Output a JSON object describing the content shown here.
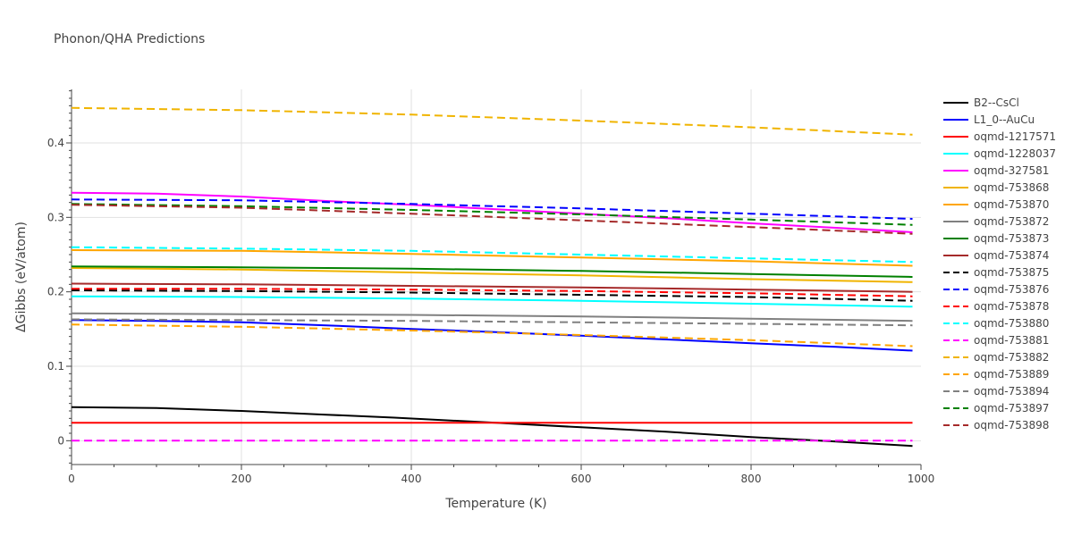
{
  "chart_data": {
    "type": "line",
    "title": "Phonon/QHA Predictions",
    "xlabel": "Temperature (K)",
    "ylabel": "ΔGibbs (eV/atom)",
    "xlim": [
      0,
      1000
    ],
    "ylim": [
      -0.032,
      0.472
    ],
    "xticks": [
      0,
      200,
      400,
      600,
      800,
      1000
    ],
    "yticks": [
      0,
      0.1,
      0.2,
      0.3,
      0.4
    ],
    "ytick_labels": [
      "0",
      "0.1",
      "0.2",
      "0.3",
      "0.4"
    ],
    "grid": true,
    "legend_position": "right",
    "series": [
      {
        "name": "B2--CsCl",
        "color": "#000000",
        "dash": "solid",
        "x": [
          0,
          100,
          200,
          300,
          380,
          500,
          600,
          700,
          800,
          900,
          990
        ],
        "y": [
          0.045,
          0.044,
          0.04,
          0.035,
          0.031,
          0.024,
          0.018,
          0.012,
          0.005,
          -0.001,
          -0.007
        ]
      },
      {
        "name": "L1_0--AuCu",
        "color": "#0000ff",
        "dash": "solid",
        "x": [
          0,
          100,
          200,
          300,
          400,
          500,
          600,
          700,
          800,
          900,
          990
        ],
        "y": [
          0.162,
          0.161,
          0.159,
          0.155,
          0.15,
          0.146,
          0.141,
          0.136,
          0.131,
          0.126,
          0.121
        ]
      },
      {
        "name": "oqmd-1217571",
        "color": "#ff0000",
        "dash": "solid",
        "x": [
          0,
          500,
          990
        ],
        "y": [
          0.024,
          0.024,
          0.024
        ]
      },
      {
        "name": "oqmd-1228037",
        "color": "#00ffff",
        "dash": "solid",
        "x": [
          0,
          200,
          400,
          600,
          800,
          990
        ],
        "y": [
          0.194,
          0.193,
          0.191,
          0.188,
          0.184,
          0.18
        ]
      },
      {
        "name": "oqmd-327581",
        "color": "#ff00ff",
        "dash": "solid",
        "x": [
          0,
          100,
          200,
          300,
          400,
          500,
          600,
          700,
          800,
          900,
          990
        ],
        "y": [
          0.333,
          0.332,
          0.328,
          0.322,
          0.317,
          0.311,
          0.305,
          0.299,
          0.292,
          0.286,
          0.28
        ]
      },
      {
        "name": "oqmd-753868",
        "color": "#f0b400",
        "dash": "solid",
        "x": [
          0,
          200,
          400,
          600,
          800,
          990
        ],
        "y": [
          0.232,
          0.23,
          0.226,
          0.222,
          0.217,
          0.213
        ]
      },
      {
        "name": "oqmd-753870",
        "color": "#ffa500",
        "dash": "solid",
        "x": [
          0,
          200,
          400,
          600,
          800,
          990
        ],
        "y": [
          0.256,
          0.255,
          0.251,
          0.246,
          0.241,
          0.235
        ]
      },
      {
        "name": "oqmd-753872",
        "color": "#808080",
        "dash": "solid",
        "x": [
          0,
          200,
          400,
          600,
          800,
          990
        ],
        "y": [
          0.171,
          0.17,
          0.169,
          0.167,
          0.164,
          0.161
        ]
      },
      {
        "name": "oqmd-753873",
        "color": "#008000",
        "dash": "solid",
        "x": [
          0,
          200,
          400,
          600,
          800,
          990
        ],
        "y": [
          0.234,
          0.233,
          0.231,
          0.228,
          0.224,
          0.22
        ]
      },
      {
        "name": "oqmd-753874",
        "color": "#a52a2a",
        "dash": "solid",
        "x": [
          0,
          200,
          400,
          600,
          800,
          990
        ],
        "y": [
          0.211,
          0.21,
          0.208,
          0.206,
          0.203,
          0.2
        ]
      },
      {
        "name": "oqmd-753875",
        "color": "#000000",
        "dash": "dash",
        "x": [
          0,
          200,
          400,
          600,
          800,
          990
        ],
        "y": [
          0.202,
          0.201,
          0.199,
          0.196,
          0.193,
          0.188
        ]
      },
      {
        "name": "oqmd-753876",
        "color": "#0000ff",
        "dash": "dash",
        "x": [
          0,
          200,
          400,
          600,
          800,
          990
        ],
        "y": [
          0.324,
          0.323,
          0.318,
          0.312,
          0.305,
          0.298
        ]
      },
      {
        "name": "oqmd-753878",
        "color": "#ff0000",
        "dash": "dash",
        "x": [
          0,
          200,
          400,
          600,
          800,
          990
        ],
        "y": [
          0.204,
          0.204,
          0.203,
          0.201,
          0.198,
          0.194
        ]
      },
      {
        "name": "oqmd-753880",
        "color": "#00ffff",
        "dash": "dash",
        "x": [
          0,
          200,
          400,
          600,
          800,
          990
        ],
        "y": [
          0.26,
          0.258,
          0.255,
          0.25,
          0.245,
          0.24
        ]
      },
      {
        "name": "oqmd-753881",
        "color": "#ff00ff",
        "dash": "dash",
        "x": [
          0,
          500,
          990
        ],
        "y": [
          0.0,
          0.0,
          0.0
        ]
      },
      {
        "name": "oqmd-753882",
        "color": "#f0b400",
        "dash": "dash",
        "x": [
          0,
          200,
          400,
          600,
          800,
          990
        ],
        "y": [
          0.447,
          0.444,
          0.438,
          0.43,
          0.421,
          0.411
        ]
      },
      {
        "name": "oqmd-753889",
        "color": "#ffa500",
        "dash": "dash",
        "x": [
          0,
          200,
          400,
          600,
          800,
          990
        ],
        "y": [
          0.156,
          0.153,
          0.148,
          0.142,
          0.135,
          0.127
        ]
      },
      {
        "name": "oqmd-753894",
        "color": "#808080",
        "dash": "dash",
        "x": [
          0,
          200,
          400,
          600,
          800,
          990
        ],
        "y": [
          0.163,
          0.162,
          0.161,
          0.159,
          0.157,
          0.155
        ]
      },
      {
        "name": "oqmd-753897",
        "color": "#008000",
        "dash": "dash",
        "x": [
          0,
          200,
          400,
          600,
          800,
          990
        ],
        "y": [
          0.318,
          0.315,
          0.31,
          0.304,
          0.297,
          0.29
        ]
      },
      {
        "name": "oqmd-753898",
        "color": "#a52a2a",
        "dash": "dash",
        "x": [
          0,
          200,
          400,
          600,
          800,
          990
        ],
        "y": [
          0.317,
          0.313,
          0.305,
          0.296,
          0.287,
          0.278
        ]
      }
    ]
  }
}
